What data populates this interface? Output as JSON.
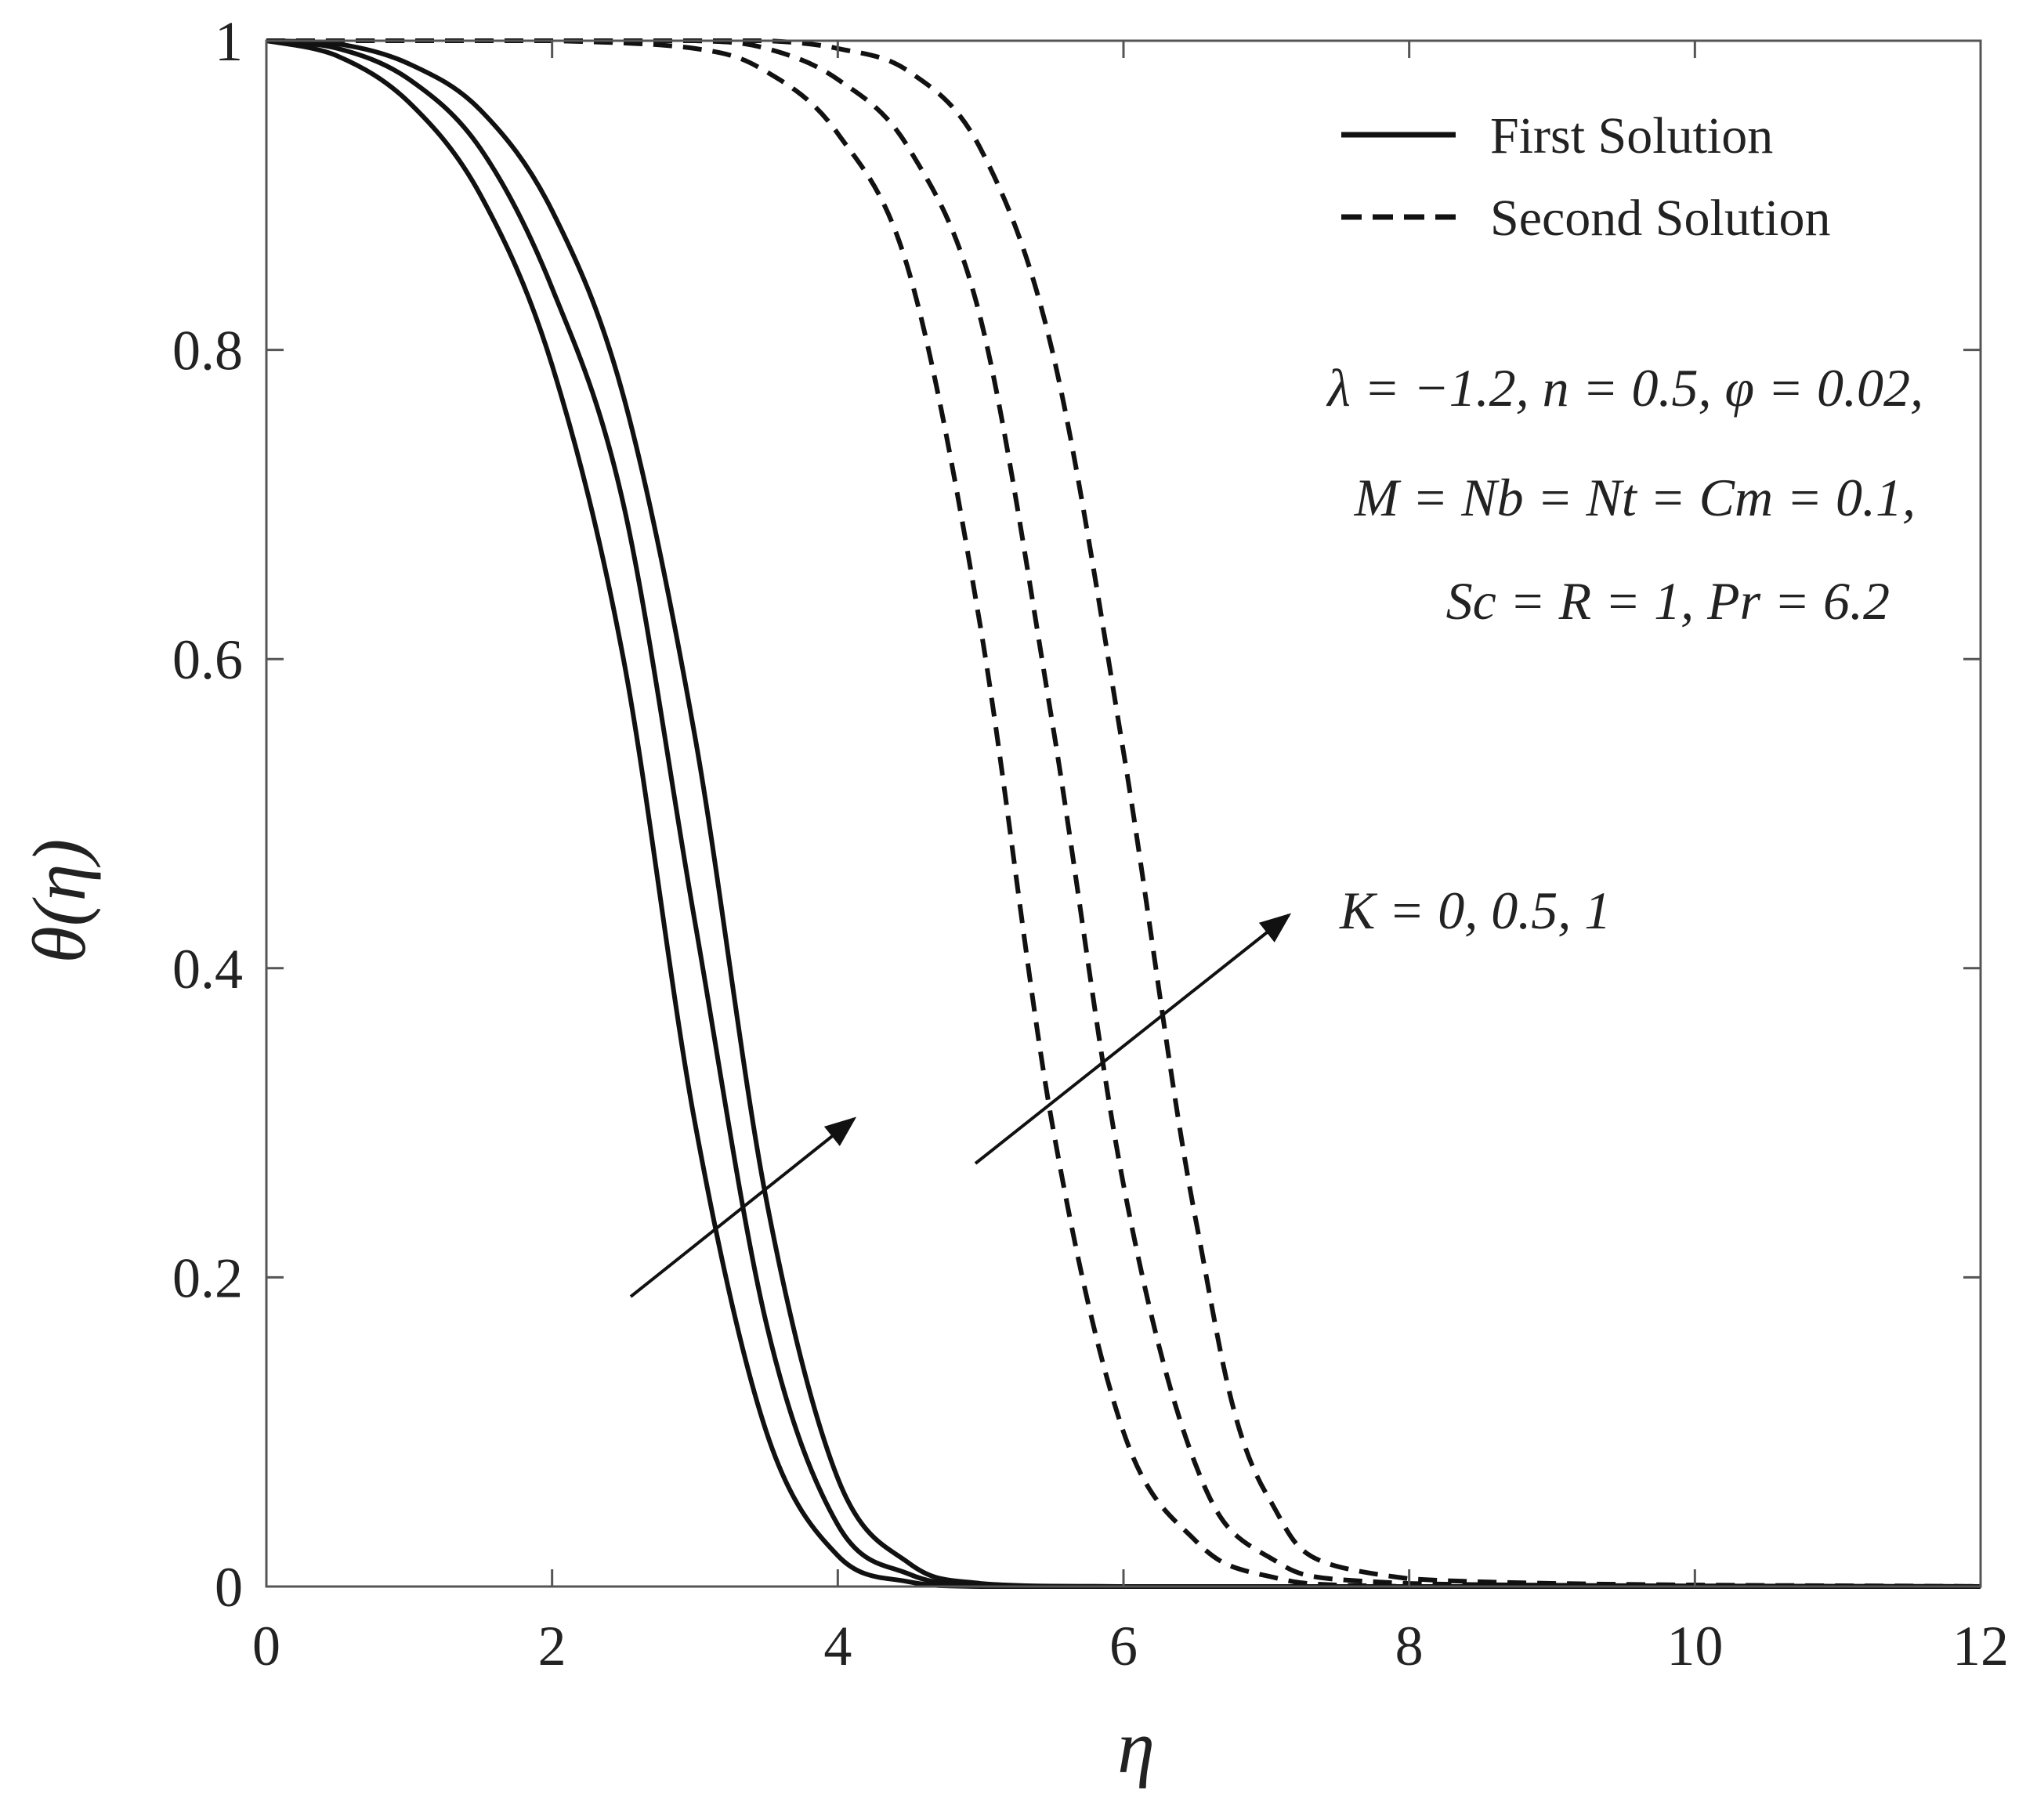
{
  "chart_data": {
    "type": "line",
    "title": "",
    "xlabel": "η",
    "ylabel": "θ(η)",
    "xlim": [
      0,
      12
    ],
    "ylim": [
      0,
      1
    ],
    "xticks": [
      "0",
      "2",
      "4",
      "6",
      "8",
      "10",
      "12"
    ],
    "yticks": [
      "0",
      "0.2",
      "0.4",
      "0.6",
      "0.8",
      "1"
    ],
    "grid": false,
    "legend_position": "top-right",
    "legend": [
      {
        "label": "First Solution",
        "style": "solid"
      },
      {
        "label": "Second Solution",
        "style": "dashed"
      }
    ],
    "series": [
      {
        "group": "first",
        "style": "solid",
        "x": [
          0,
          0.5,
          1,
          1.5,
          2,
          2.5,
          3,
          3.5,
          4,
          4.5,
          5,
          6,
          8,
          12
        ],
        "y": [
          1,
          0.99,
          0.96,
          0.9,
          0.79,
          0.6,
          0.3,
          0.1,
          0.02,
          0.003,
          0.0,
          0,
          0,
          0
        ]
      },
      {
        "group": "first",
        "style": "solid",
        "x": [
          0,
          0.5,
          1,
          1.5,
          2,
          2.5,
          3,
          3.5,
          4,
          4.5,
          5,
          6,
          8,
          12
        ],
        "y": [
          1,
          0.995,
          0.975,
          0.93,
          0.84,
          0.7,
          0.43,
          0.17,
          0.04,
          0.008,
          0.001,
          0,
          0,
          0
        ]
      },
      {
        "group": "first",
        "style": "solid",
        "x": [
          0,
          0.5,
          1,
          1.5,
          2,
          2.5,
          3,
          3.5,
          4,
          4.5,
          5,
          6,
          8,
          12
        ],
        "y": [
          1,
          0.998,
          0.985,
          0.955,
          0.89,
          0.77,
          0.55,
          0.25,
          0.07,
          0.015,
          0.002,
          0,
          0,
          0
        ]
      },
      {
        "group": "second",
        "style": "dashed",
        "x": [
          0,
          1,
          2,
          3,
          3.5,
          4,
          4.5,
          5,
          5.5,
          6,
          6.5,
          7,
          8,
          12
        ],
        "y": [
          1,
          1,
          1,
          0.995,
          0.98,
          0.94,
          0.85,
          0.62,
          0.3,
          0.1,
          0.03,
          0.007,
          0,
          0
        ]
      },
      {
        "group": "second",
        "style": "dashed",
        "x": [
          0,
          1,
          2,
          3,
          3.5,
          4,
          4.5,
          5,
          5.5,
          6,
          6.5,
          7,
          8,
          12
        ],
        "y": [
          1,
          1,
          1,
          1,
          0.995,
          0.975,
          0.93,
          0.82,
          0.56,
          0.26,
          0.08,
          0.02,
          0.002,
          0
        ]
      },
      {
        "group": "second",
        "style": "dashed",
        "x": [
          0,
          1,
          2,
          3,
          3.5,
          4,
          4.5,
          5,
          5.5,
          6,
          6.5,
          7,
          8,
          12
        ],
        "y": [
          1,
          1,
          1,
          1,
          1,
          0.995,
          0.98,
          0.93,
          0.8,
          0.54,
          0.24,
          0.06,
          0.005,
          0
        ]
      }
    ],
    "annotations": {
      "parameters": [
        "λ = −1.2, n = 0.5, φ = 0.02,",
        "M = Nb = Nt = Cm = 0.1,",
        "Sc = R = 1, Pr = 6.2"
      ],
      "arrow_label": "K = 0, 0.5, 1"
    }
  }
}
